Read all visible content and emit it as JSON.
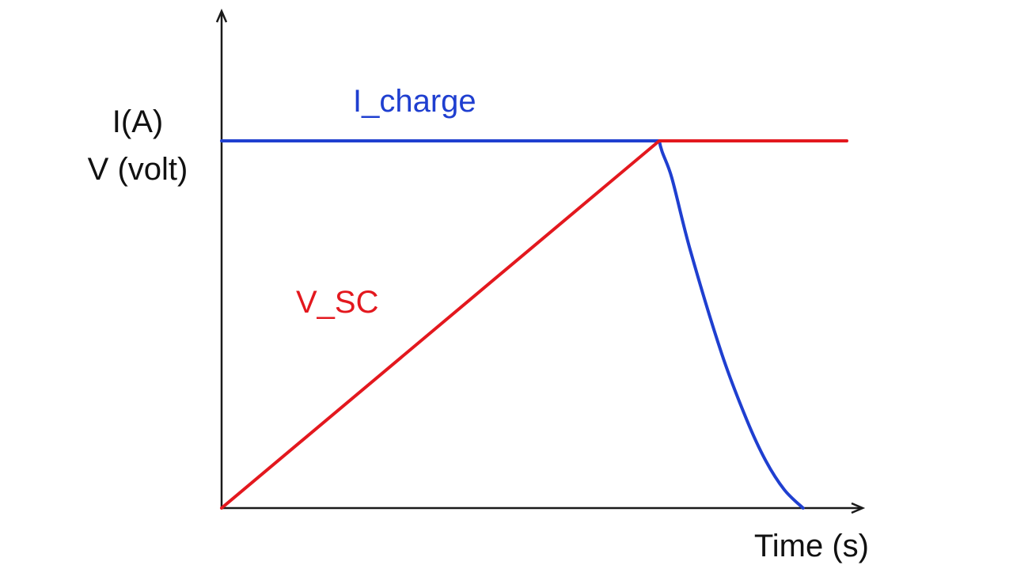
{
  "chart_data": {
    "type": "line",
    "title": "",
    "xlabel": "Time (s)",
    "ylabel_lines": [
      "I(A)",
      "V (volt)"
    ],
    "axis_colors": {
      "axis": "#1a1a1a"
    },
    "grid": false,
    "legend": "none",
    "xlim": [
      0,
      100
    ],
    "ylim": [
      0,
      100
    ],
    "series": [
      {
        "name": "I_charge",
        "color": "#1f3fd0",
        "points": [
          [
            0,
            100
          ],
          [
            70,
            100
          ],
          [
            72,
            90
          ],
          [
            75,
            70
          ],
          [
            80,
            42
          ],
          [
            84,
            24
          ],
          [
            87,
            13
          ],
          [
            90,
            5
          ],
          [
            93,
            0
          ]
        ]
      },
      {
        "name": "V_SC",
        "color": "#e3181e",
        "points": [
          [
            0,
            0
          ],
          [
            70,
            100
          ],
          [
            100,
            100
          ]
        ]
      }
    ],
    "annotations": [
      {
        "text": "I_charge",
        "color": "#1f3fd0"
      },
      {
        "text": "V_SC",
        "color": "#e3181e"
      }
    ]
  }
}
